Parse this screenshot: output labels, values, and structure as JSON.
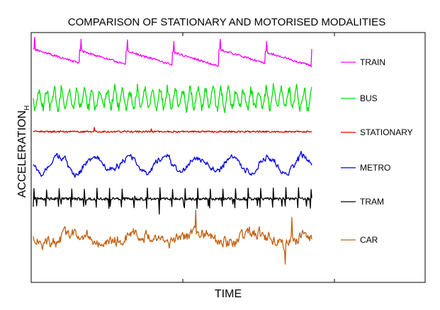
{
  "chart_data": {
    "type": "line",
    "title": "COMPARISON OF STATIONARY AND MOTORISED MODALITIES",
    "xlabel": "TIME",
    "ylabel": "ACCELERATION",
    "ylabel_subscript": "H",
    "grid": false,
    "legend_position": "right",
    "x_ticks": "unlabeled",
    "y_ticks": "unlabeled",
    "series": [
      {
        "name": "TRAIN",
        "color": "#ff00ff"
      },
      {
        "name": "BUS",
        "color": "#00e000"
      },
      {
        "name": "STATIONARY",
        "color": "#e00000"
      },
      {
        "name": "METRO",
        "color": "#0000e0"
      },
      {
        "name": "TRAM",
        "color": "#000000"
      },
      {
        "name": "CAR",
        "color": "#c06010"
      }
    ]
  }
}
